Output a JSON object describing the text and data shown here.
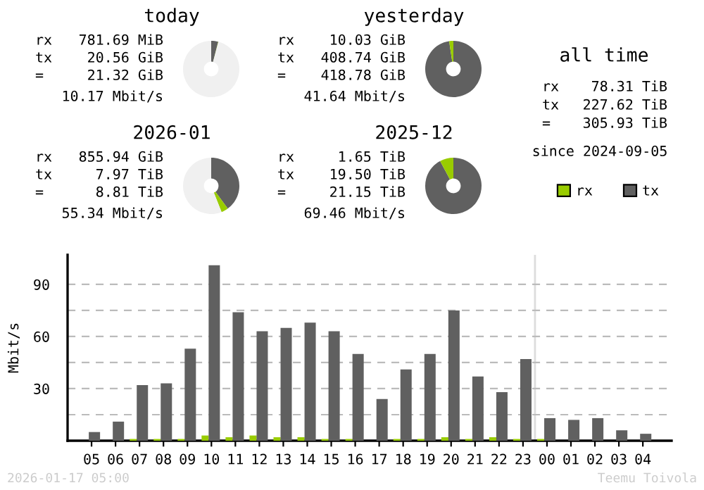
{
  "chart_data": [
    {
      "type": "donut",
      "title": "today",
      "categories": [
        null,
        null,
        null
      ],
      "values": [
        4,
        0.15,
        95.85
      ],
      "colors": [
        "#606060",
        "#99cc00",
        "#f0f0f0"
      ],
      "annotations": [
        "rx",
        "781.69 MiB",
        "tx",
        "20.56 GiB",
        "=",
        "21.32 GiB",
        "10.17 Mbit/s"
      ]
    },
    {
      "type": "donut",
      "title": "yesterday",
      "categories": [
        null,
        null
      ],
      "values": [
        97.6,
        2.4
      ],
      "colors": [
        "#606060",
        "#99cc00"
      ],
      "annotations": [
        "rx",
        "10.03 GiB",
        "tx",
        "408.74 GiB",
        "=",
        "418.78 GiB",
        "41.64 Mbit/s"
      ]
    },
    {
      "type": "donut",
      "title": "2026-01",
      "categories": [
        null,
        null,
        null
      ],
      "values": [
        40,
        4,
        56
      ],
      "colors": [
        "#606060",
        "#99cc00",
        "#f0f0f0"
      ],
      "annotations": [
        "rx",
        "855.94 GiB",
        "tx",
        "7.97 TiB",
        "=",
        "8.81 TiB",
        "55.34 Mbit/s"
      ]
    },
    {
      "type": "donut",
      "title": "2025-12",
      "categories": [
        null,
        null
      ],
      "values": [
        92.2,
        7.8
      ],
      "colors": [
        "#606060",
        "#99cc00"
      ],
      "annotations": [
        "rx",
        "1.65 TiB",
        "tx",
        "19.50 TiB",
        "=",
        "21.15 TiB",
        "69.46 Mbit/s"
      ]
    },
    {
      "type": "other",
      "title": "all time",
      "annotations": [
        "rx",
        "78.31 TiB",
        "tx",
        "227.62 TiB",
        "=",
        "305.93 TiB",
        "since 2024-09-05"
      ]
    },
    {
      "type": "bar",
      "ylabel": "Mbit/s",
      "categories": [
        "05",
        "06",
        "07",
        "08",
        "09",
        "10",
        "11",
        "12",
        "13",
        "14",
        "15",
        "16",
        "17",
        "18",
        "19",
        "20",
        "21",
        "22",
        "23",
        "00",
        "01",
        "02",
        "03",
        "04"
      ],
      "series": [
        {
          "name": "rx",
          "color": "#99cc00",
          "values": [
            0,
            0,
            1,
            1,
            1,
            3,
            2,
            3,
            2,
            2,
            1,
            1,
            0,
            1,
            1,
            2,
            1,
            2,
            1,
            1,
            0,
            0,
            0,
            0
          ]
        },
        {
          "name": "tx",
          "color": "#606060",
          "values": [
            5,
            11,
            32,
            33,
            53,
            101,
            74,
            63,
            65,
            68,
            63,
            50,
            24,
            41,
            50,
            75,
            37,
            28,
            47,
            13,
            12,
            13,
            6,
            4
          ]
        }
      ],
      "ylim": [
        0,
        107
      ],
      "yticks": [
        {
          "value": 15,
          "label": null
        },
        30,
        {
          "value": 45,
          "label": null
        },
        60,
        {
          "value": 75,
          "label": null
        },
        90
      ],
      "grid": "y",
      "legend": "top right",
      "ref_lines": [
        {
          "axis": "x",
          "value": "00",
          "color": "#dddddd"
        }
      ],
      "annotations": [
        "2026-01-17 05:00",
        "Teemu Toivola"
      ]
    }
  ]
}
